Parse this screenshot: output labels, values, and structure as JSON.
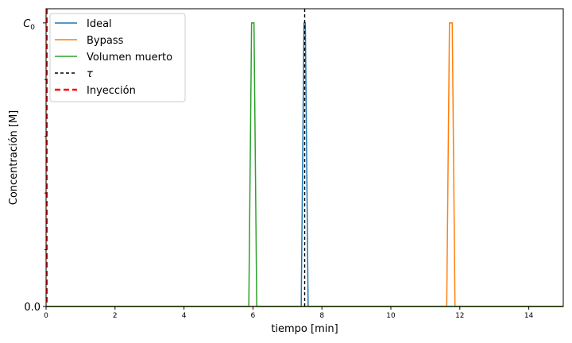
{
  "chart_data": {
    "type": "line",
    "xlabel": "tiempo [min]",
    "ylabel": "Concentración [M]",
    "xlim": [
      0,
      15
    ],
    "ylim": [
      0,
      1.05
    ],
    "x_ticks": [
      0,
      2,
      4,
      6,
      8,
      10,
      12,
      14
    ],
    "y_ticks": [
      {
        "value": 0,
        "label": "0.0"
      },
      {
        "value": 1,
        "label": "C0",
        "math": true
      }
    ],
    "y_minor_ticks": [
      0.2,
      0.4,
      0.6,
      0.8
    ],
    "grid": false,
    "legend_position": "upper-left",
    "series": [
      {
        "name": "Ideal",
        "color": "#1f77b4",
        "style": "solid",
        "x": [
          0,
          7.4,
          7.48,
          7.52,
          7.6,
          15
        ],
        "y": [
          0,
          0,
          1,
          1,
          0,
          0
        ]
      },
      {
        "name": "Bypass",
        "color": "#ff7f0e",
        "style": "solid",
        "x": [
          0,
          11.62,
          11.7,
          11.78,
          11.86,
          15
        ],
        "y": [
          0,
          0,
          1,
          1,
          0,
          0
        ]
      },
      {
        "name": "Volumen muerto",
        "color": "#2ca02c",
        "style": "solid",
        "x": [
          0,
          5.88,
          5.96,
          6.03,
          6.11,
          15
        ],
        "y": [
          0,
          0,
          1,
          1,
          0,
          0
        ]
      },
      {
        "name": "τ",
        "color": "#000000",
        "style": "dashed",
        "vertical_at": 7.5
      },
      {
        "name": "Inyección",
        "color": "#ff0000",
        "style": "dashed-thick",
        "vertical_at": 0
      }
    ]
  }
}
